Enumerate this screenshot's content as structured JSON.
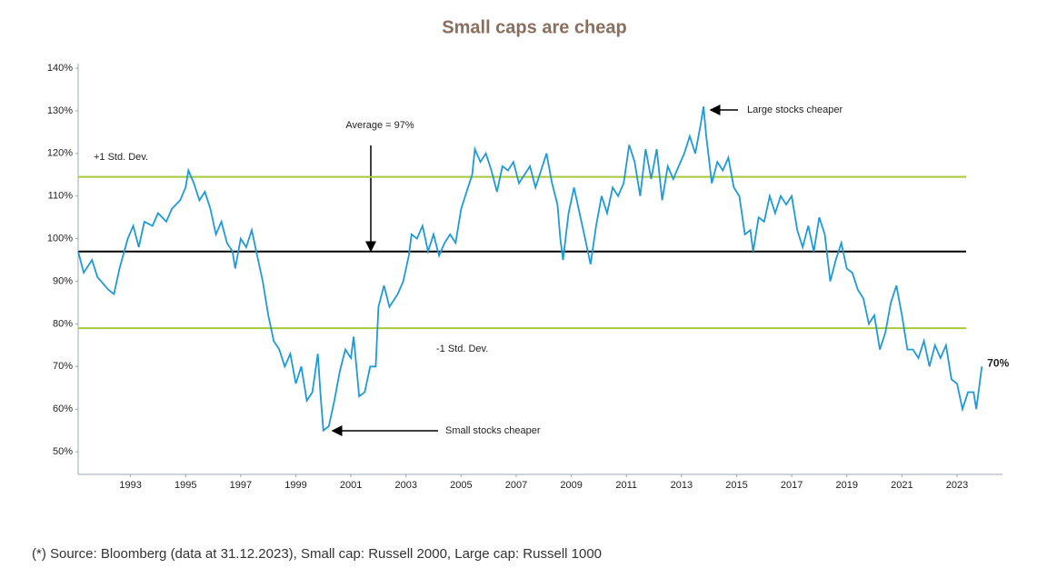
{
  "chart_data": {
    "type": "line",
    "title": "Small caps are cheap",
    "x": [
      1991.1,
      1991.3,
      1991.6,
      1991.8,
      1992.2,
      1992.4,
      1992.6,
      1992.9,
      1993.1,
      1993.3,
      1993.5,
      1993.8,
      1994.0,
      1994.3,
      1994.5,
      1994.8,
      1995.0,
      1995.1,
      1995.3,
      1995.5,
      1995.7,
      1995.9,
      1996.1,
      1996.3,
      1996.5,
      1996.7,
      1996.8,
      1997.0,
      1997.2,
      1997.4,
      1997.6,
      1997.8,
      1998.0,
      1998.2,
      1998.4,
      1998.6,
      1998.8,
      1999.0,
      1999.2,
      1999.4,
      1999.6,
      1999.8,
      1999.9,
      2000.0,
      2000.2,
      2000.4,
      2000.6,
      2000.8,
      2001.0,
      2001.1,
      2001.3,
      2001.5,
      2001.7,
      2001.9,
      2002.0,
      2002.2,
      2002.4,
      2002.7,
      2002.9,
      2003.1,
      2003.2,
      2003.4,
      2003.6,
      2003.8,
      2004.0,
      2004.2,
      2004.4,
      2004.6,
      2004.8,
      2005.0,
      2005.2,
      2005.4,
      2005.5,
      2005.7,
      2005.9,
      2006.1,
      2006.3,
      2006.5,
      2006.7,
      2006.9,
      2007.1,
      2007.3,
      2007.5,
      2007.7,
      2007.9,
      2008.1,
      2008.3,
      2008.5,
      2008.6,
      2008.7,
      2008.9,
      2009.1,
      2009.3,
      2009.5,
      2009.7,
      2009.9,
      2010.1,
      2010.3,
      2010.5,
      2010.7,
      2010.9,
      2011.1,
      2011.3,
      2011.5,
      2011.7,
      2011.9,
      2012.1,
      2012.3,
      2012.5,
      2012.7,
      2012.9,
      2013.1,
      2013.3,
      2013.5,
      2013.7,
      2013.8,
      2013.9,
      2014.1,
      2014.3,
      2014.5,
      2014.7,
      2014.9,
      2015.1,
      2015.3,
      2015.5,
      2015.6,
      2015.8,
      2016.0,
      2016.2,
      2016.4,
      2016.6,
      2016.8,
      2017.0,
      2017.2,
      2017.4,
      2017.6,
      2017.8,
      2018.0,
      2018.2,
      2018.4,
      2018.6,
      2018.8,
      2019.0,
      2019.2,
      2019.4,
      2019.6,
      2019.8,
      2020.0,
      2020.2,
      2020.4,
      2020.6,
      2020.8,
      2021.0,
      2021.2,
      2021.4,
      2021.6,
      2021.8,
      2022.0,
      2022.2,
      2022.4,
      2022.6,
      2022.8,
      2023.0,
      2023.2,
      2023.4,
      2023.6,
      2023.7,
      2023.9
    ],
    "series": [
      {
        "color": "#1f9ad6",
        "values": [
          97,
          92,
          95,
          91,
          88,
          87,
          93,
          100,
          103,
          98,
          104,
          103,
          106,
          104,
          107,
          109,
          112,
          116,
          113,
          109,
          111,
          107,
          101,
          104,
          99,
          97,
          93,
          100,
          98,
          102,
          96,
          90,
          82,
          76,
          74,
          70,
          73,
          66,
          70,
          62,
          64,
          73,
          63,
          55,
          56,
          62,
          69,
          74,
          72,
          77,
          63,
          64,
          70,
          70,
          84,
          89,
          84,
          87,
          90,
          96,
          101,
          100,
          103,
          97,
          101,
          96,
          99,
          101,
          99,
          107,
          111,
          115,
          121,
          118,
          120,
          116,
          111,
          117,
          116,
          118,
          113,
          115,
          117,
          112,
          116,
          120,
          113,
          108,
          100,
          95,
          106,
          112,
          106,
          100,
          94,
          103,
          110,
          106,
          112,
          110,
          113,
          122,
          118,
          110,
          121,
          114,
          121,
          109,
          117,
          114,
          117,
          120,
          124,
          120,
          127,
          131,
          124,
          113,
          118,
          116,
          119,
          112,
          110,
          101,
          102,
          97,
          105,
          104,
          110,
          106,
          110,
          108,
          110,
          102,
          98,
          103,
          97,
          105,
          101,
          90,
          95,
          99,
          93,
          92,
          88,
          86,
          80,
          82,
          74,
          78,
          85,
          89,
          82,
          74,
          74,
          72,
          76,
          70,
          75,
          72,
          75,
          67,
          66,
          60,
          64,
          64,
          60,
          70
        ]
      }
    ],
    "end_label": "70%",
    "hlines": [
      {
        "value": 97,
        "color": "#000000"
      },
      {
        "value": 114.5,
        "color": "#a6c83a"
      },
      {
        "value": 79,
        "color": "#a6c83a"
      }
    ],
    "annotations": [
      "Average = 97%",
      "+1 Std. Dev.",
      "-1 Std. Dev.",
      "Large stocks cheaper",
      "Small stocks cheaper"
    ],
    "xlim": [
      1991.1,
      2024.65
    ],
    "xticks": [
      1993,
      1995,
      1997,
      1999,
      2001,
      2003,
      2005,
      2007,
      2009,
      2011,
      2013,
      2015,
      2017,
      2019,
      2021,
      2023
    ],
    "ylim": [
      44.7,
      140
    ],
    "yticks": [
      {
        "value": 50,
        "label": "50%"
      },
      {
        "value": 60,
        "label": "60%"
      },
      {
        "value": 70,
        "label": "70%"
      },
      {
        "value": 80,
        "label": "80%"
      },
      {
        "value": 90,
        "label": "90%"
      },
      {
        "value": 100,
        "label": "100%"
      },
      {
        "value": 110,
        "label": "110%"
      },
      {
        "value": 120,
        "label": "120%"
      },
      {
        "value": 130,
        "label": "130%"
      },
      {
        "value": 140,
        "label": "140%"
      }
    ]
  },
  "footnote": "(*) Source: Bloomberg (data at 31.12.2023), Small cap: Russell 2000, Large cap: Russell 1000"
}
